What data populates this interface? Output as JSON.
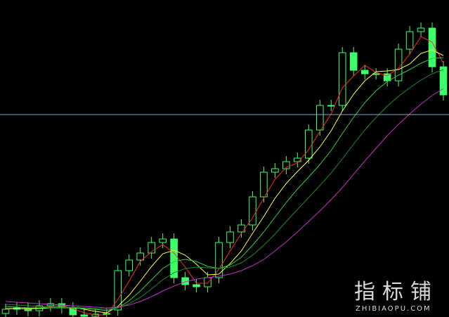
{
  "chart_data": {
    "type": "candlestick",
    "ylim": [
      0,
      451
    ],
    "hline": {
      "value": 288,
      "color": "#7fa7c9"
    },
    "up_color": "#3dff6a",
    "down_color": "#3dff6a",
    "open": [
      5,
      11,
      13,
      9,
      16,
      19,
      13,
      3,
      1,
      4,
      10,
      66,
      81,
      91,
      106,
      111,
      56,
      46,
      43,
      56,
      106,
      121,
      131,
      171,
      206,
      211,
      221,
      226,
      266,
      301,
      301,
      376,
      351,
      346,
      346,
      336,
      381,
      406,
      411,
      356
    ],
    "high": [
      19,
      21,
      21,
      24,
      27,
      27,
      21,
      11,
      12,
      13,
      74,
      89,
      99,
      114,
      119,
      119,
      64,
      54,
      64,
      114,
      129,
      139,
      179,
      214,
      219,
      229,
      234,
      274,
      309,
      309,
      384,
      384,
      359,
      354,
      354,
      389,
      414,
      419,
      419,
      364
    ],
    "low": [
      0,
      3,
      1,
      1,
      8,
      5,
      0,
      0,
      0,
      0,
      2,
      58,
      73,
      83,
      98,
      48,
      38,
      35,
      35,
      48,
      98,
      113,
      123,
      163,
      198,
      203,
      213,
      218,
      258,
      293,
      293,
      343,
      338,
      338,
      328,
      328,
      373,
      398,
      348,
      308
    ],
    "close": [
      11,
      13,
      9,
      16,
      19,
      13,
      3,
      1,
      4,
      5,
      66,
      81,
      91,
      106,
      111,
      56,
      46,
      43,
      56,
      106,
      121,
      131,
      171,
      206,
      211,
      221,
      226,
      266,
      301,
      301,
      376,
      351,
      346,
      346,
      336,
      381,
      406,
      411,
      356,
      316
    ],
    "lines": [
      {
        "color": "#ff2a2a",
        "values": [
          11,
          12,
          11,
          13,
          15,
          16,
          12,
          6,
          3,
          3,
          25,
          51,
          79,
          93,
          103,
          91,
          71,
          48,
          48,
          68,
          94,
          119,
          141,
          169,
          196,
          213,
          219,
          238,
          264,
          289,
          326,
          343,
          358,
          348,
          343,
          354,
          374,
          399,
          391,
          361
        ]
      },
      {
        "color": "#ffff40",
        "values": [
          12,
          12,
          12,
          12,
          13,
          14,
          14,
          11,
          8,
          6,
          15,
          31,
          51,
          72,
          90,
          95,
          88,
          75,
          60,
          61,
          76,
          94,
          119,
          143,
          169,
          190,
          207,
          223,
          242,
          265,
          293,
          317,
          336,
          349,
          350,
          352,
          360,
          375,
          380,
          372
        ]
      },
      {
        "color": "#2ecc40",
        "values": [
          15,
          14,
          13,
          13,
          13,
          13,
          13,
          12,
          11,
          9,
          13,
          23,
          37,
          53,
          69,
          79,
          82,
          79,
          72,
          69,
          74,
          85,
          102,
          121,
          142,
          163,
          182,
          199,
          217,
          237,
          261,
          284,
          305,
          322,
          335,
          344,
          352,
          361,
          368,
          369
        ]
      },
      {
        "color": "#1a8a2a",
        "values": [
          18,
          17,
          16,
          15,
          14,
          14,
          14,
          13,
          12,
          11,
          13,
          19,
          28,
          40,
          53,
          63,
          69,
          71,
          70,
          69,
          71,
          77,
          88,
          102,
          118,
          136,
          153,
          170,
          187,
          205,
          225,
          246,
          266,
          284,
          300,
          314,
          326,
          337,
          346,
          352
        ]
      },
      {
        "color": "#c030c0",
        "values": [
          22,
          21,
          20,
          19,
          18,
          17,
          16,
          15,
          14,
          13,
          14,
          17,
          22,
          29,
          37,
          44,
          50,
          54,
          56,
          58,
          61,
          66,
          73,
          82,
          94,
          107,
          121,
          136,
          151,
          167,
          184,
          203,
          222,
          240,
          258,
          274,
          289,
          303,
          315,
          325
        ]
      }
    ],
    "watermark": "指标铺",
    "watermark_sub": "ZHIBIAOPU.COM"
  }
}
